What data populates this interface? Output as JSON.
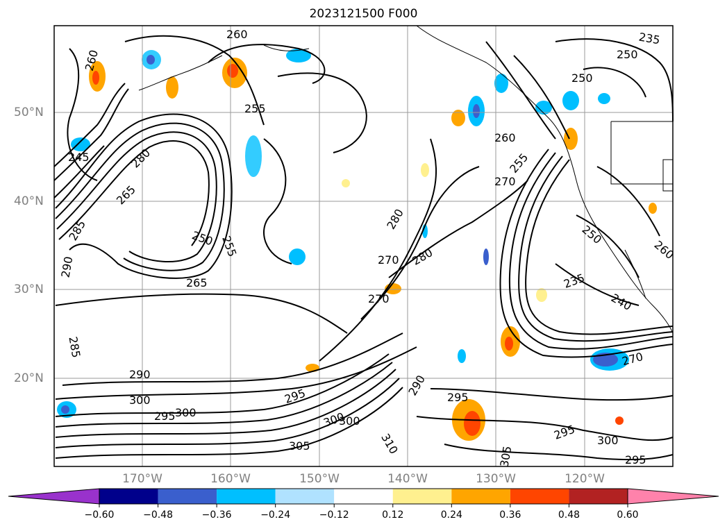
{
  "title": "2023121500 F000",
  "lat_labels": [
    "50°N",
    "40°N",
    "30°N",
    "20°N"
  ],
  "lon_labels": [
    "170°W",
    "160°W",
    "150°W",
    "140°W",
    "130°W",
    "120°W"
  ],
  "contour_labels": [
    "260",
    "250",
    "255",
    "260",
    "235",
    "245",
    "250",
    "260",
    "285",
    "280",
    "255",
    "290",
    "250",
    "265",
    "265",
    "255",
    "270",
    "280",
    "270",
    "280",
    "270",
    "260",
    "250",
    "240",
    "235",
    "270",
    "285",
    "290",
    "300",
    "295",
    "295",
    "300",
    "300",
    "305",
    "290",
    "295",
    "305",
    "300",
    "310",
    "295",
    "300",
    "295"
  ],
  "colorbar": {
    "ticks": [
      "-0.60",
      "-0.48",
      "-0.36",
      "-0.24",
      "-0.12",
      "0.12",
      "0.24",
      "0.36",
      "0.48",
      "0.60"
    ],
    "colors": [
      "#9932cc",
      "#00008b",
      "#3a5fcd",
      "#00bfff",
      "#b0e2ff",
      "#ffffff",
      "#fff08f",
      "#ffa500",
      "#ff4500",
      "#b22222",
      "#ff82ab"
    ]
  }
}
